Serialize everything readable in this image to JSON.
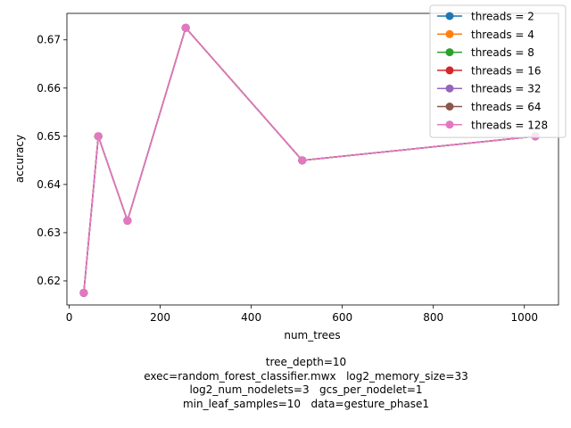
{
  "chart_data": {
    "type": "line",
    "xlabel": "num_trees",
    "ylabel": "accuracy",
    "xlim": [
      -5,
      1075
    ],
    "ylim": [
      0.615,
      0.6755
    ],
    "xticks": [
      0,
      200,
      400,
      600,
      800,
      1000
    ],
    "yticks": [
      0.62,
      0.63,
      0.64,
      0.65,
      0.66,
      0.67
    ],
    "x": [
      32,
      64,
      128,
      256,
      512,
      1024
    ],
    "legend_position": "top-right",
    "grid": false,
    "series": [
      {
        "name": "threads = 2",
        "color": "#1f77b4",
        "values": [
          0.6175,
          0.65,
          0.6325,
          0.6725,
          0.645,
          0.65
        ]
      },
      {
        "name": "threads = 4",
        "color": "#ff7f0e",
        "values": [
          0.6175,
          0.65,
          0.6325,
          0.6725,
          0.645,
          0.65
        ]
      },
      {
        "name": "threads = 8",
        "color": "#2ca02c",
        "values": [
          0.6175,
          0.65,
          0.6325,
          0.6725,
          0.645,
          0.65
        ]
      },
      {
        "name": "threads = 16",
        "color": "#d62728",
        "values": [
          0.6175,
          0.65,
          0.6325,
          0.6725,
          0.645,
          0.65
        ]
      },
      {
        "name": "threads = 32",
        "color": "#9467bd",
        "values": [
          0.6175,
          0.65,
          0.6325,
          0.6725,
          0.645,
          0.65
        ]
      },
      {
        "name": "threads = 64",
        "color": "#8c564b",
        "values": [
          0.6175,
          0.65,
          0.6325,
          0.6725,
          0.645,
          0.65
        ]
      },
      {
        "name": "threads = 128",
        "color": "#e377c2",
        "values": [
          0.6175,
          0.65,
          0.6325,
          0.6725,
          0.645,
          0.65
        ]
      }
    ]
  },
  "caption": {
    "line1": "tree_depth=10",
    "line2": "exec=random_forest_classifier.mwx   log2_memory_size=33",
    "line3": "log2_num_nodelets=3   gcs_per_nodelet=1",
    "line4": "min_leaf_samples=10   data=gesture_phase1"
  }
}
